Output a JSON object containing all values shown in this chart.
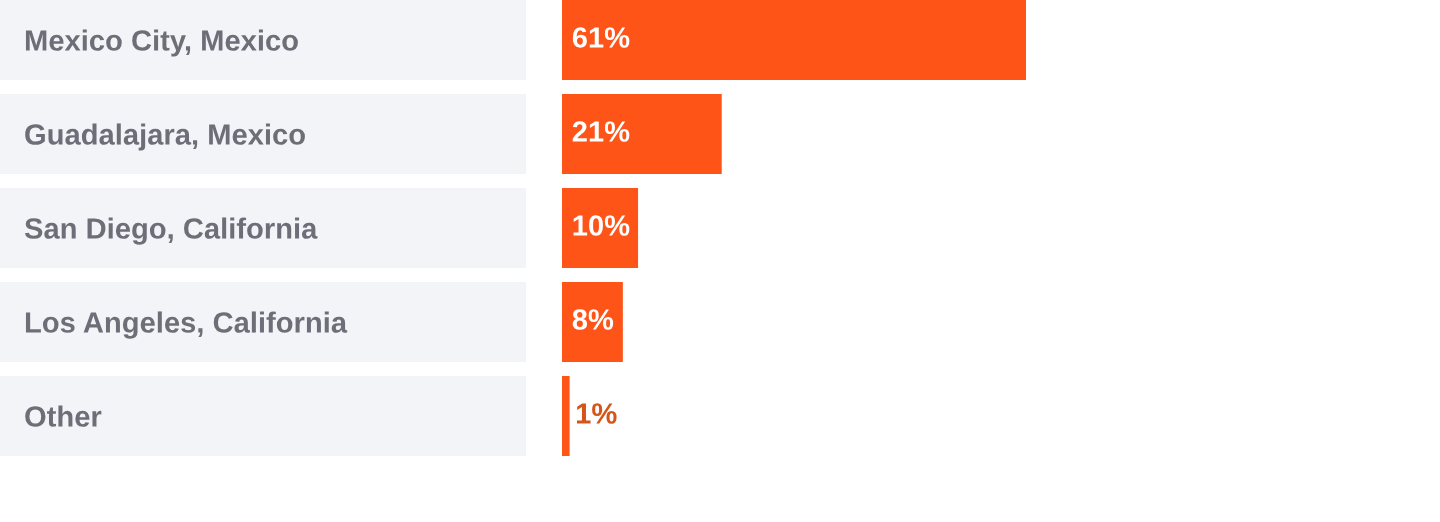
{
  "chart_data": {
    "type": "bar",
    "orientation": "horizontal",
    "categories": [
      "Mexico City, Mexico",
      "Guadalajara, Mexico",
      "San Diego, California",
      "Los Angeles, California",
      "Other"
    ],
    "values": [
      61,
      21,
      10,
      8,
      1
    ],
    "value_labels": [
      "61%",
      "21%",
      "10%",
      "8%",
      "1%"
    ],
    "color": "#ff5418",
    "grid": false,
    "legend": false
  }
}
